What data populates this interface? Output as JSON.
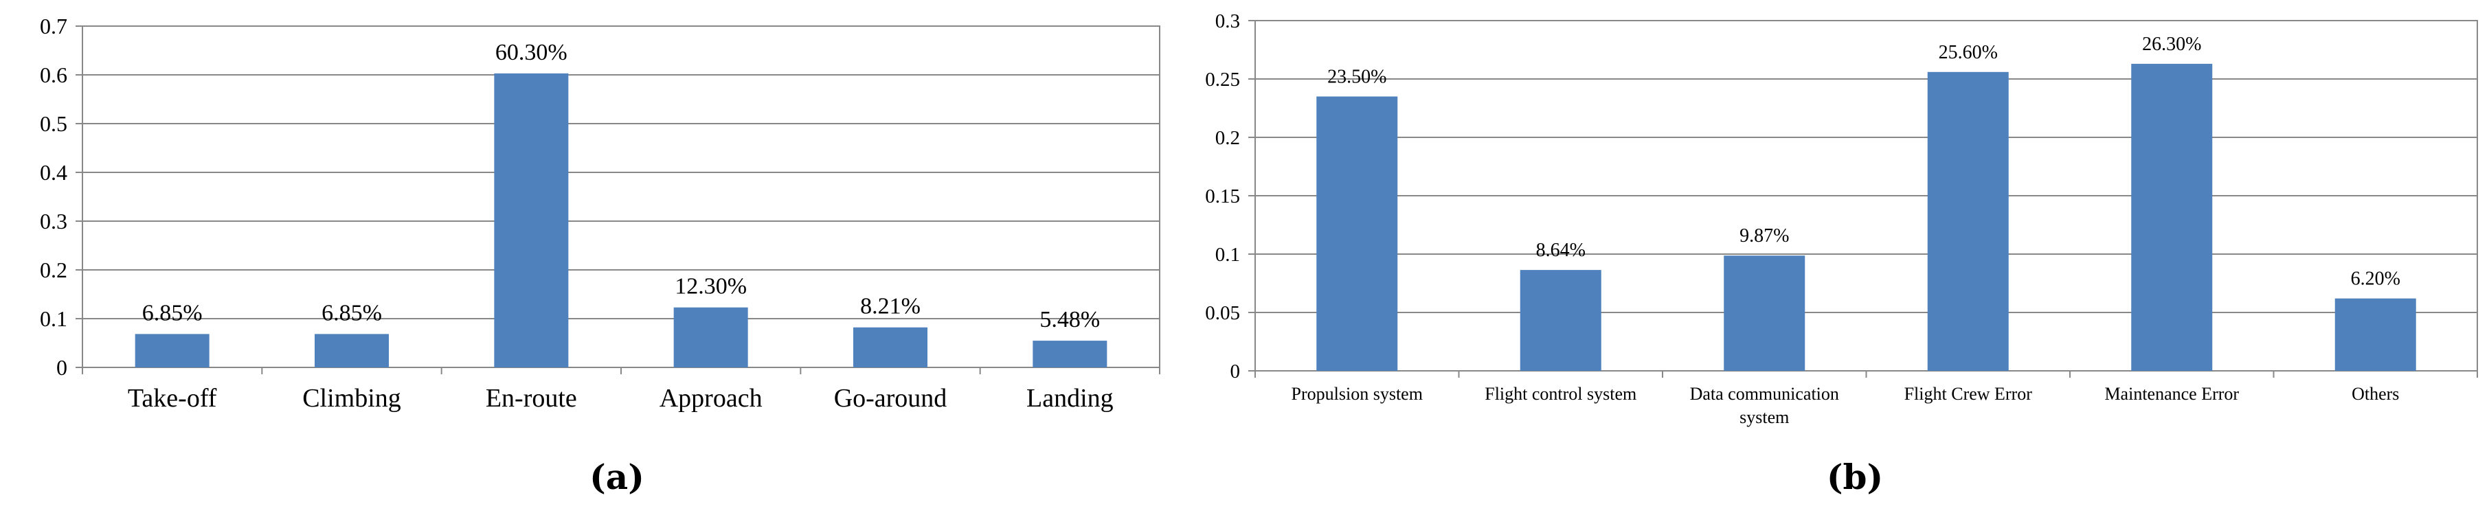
{
  "chart_data": [
    {
      "type": "bar",
      "caption": "(a)",
      "categories": [
        "Take-off",
        "Climbing",
        "En-route",
        "Approach",
        "Go-around",
        "Landing"
      ],
      "values": [
        0.0685,
        0.0685,
        0.603,
        0.123,
        0.0821,
        0.0548
      ],
      "data_labels": [
        "6.85%",
        "6.85%",
        "60.30%",
        "12.30%",
        "8.21%",
        "5.48%"
      ],
      "yticks": [
        "0",
        "0.1",
        "0.2",
        "0.3",
        "0.4",
        "0.5",
        "0.6",
        "0.7"
      ],
      "ylim": [
        0,
        0.7
      ],
      "grid": true,
      "bar_color": "#4f81bd"
    },
    {
      "type": "bar",
      "caption": "(b)",
      "categories": [
        [
          "Propulsion system"
        ],
        [
          "Flight control system"
        ],
        [
          "Data communication",
          "system"
        ],
        [
          "Flight Crew Error"
        ],
        [
          "Maintenance Error"
        ],
        [
          "Others"
        ]
      ],
      "values": [
        0.235,
        0.0864,
        0.0987,
        0.256,
        0.263,
        0.062
      ],
      "data_labels": [
        "23.50%",
        "8.64%",
        "9.87%",
        "25.60%",
        "26.30%",
        "6.20%"
      ],
      "yticks": [
        "0",
        "0.05",
        "0.1",
        "0.15",
        "0.2",
        "0.25",
        "0.3"
      ],
      "ylim": [
        0,
        0.3
      ],
      "grid": true,
      "bar_color": "#4f81bd"
    }
  ]
}
